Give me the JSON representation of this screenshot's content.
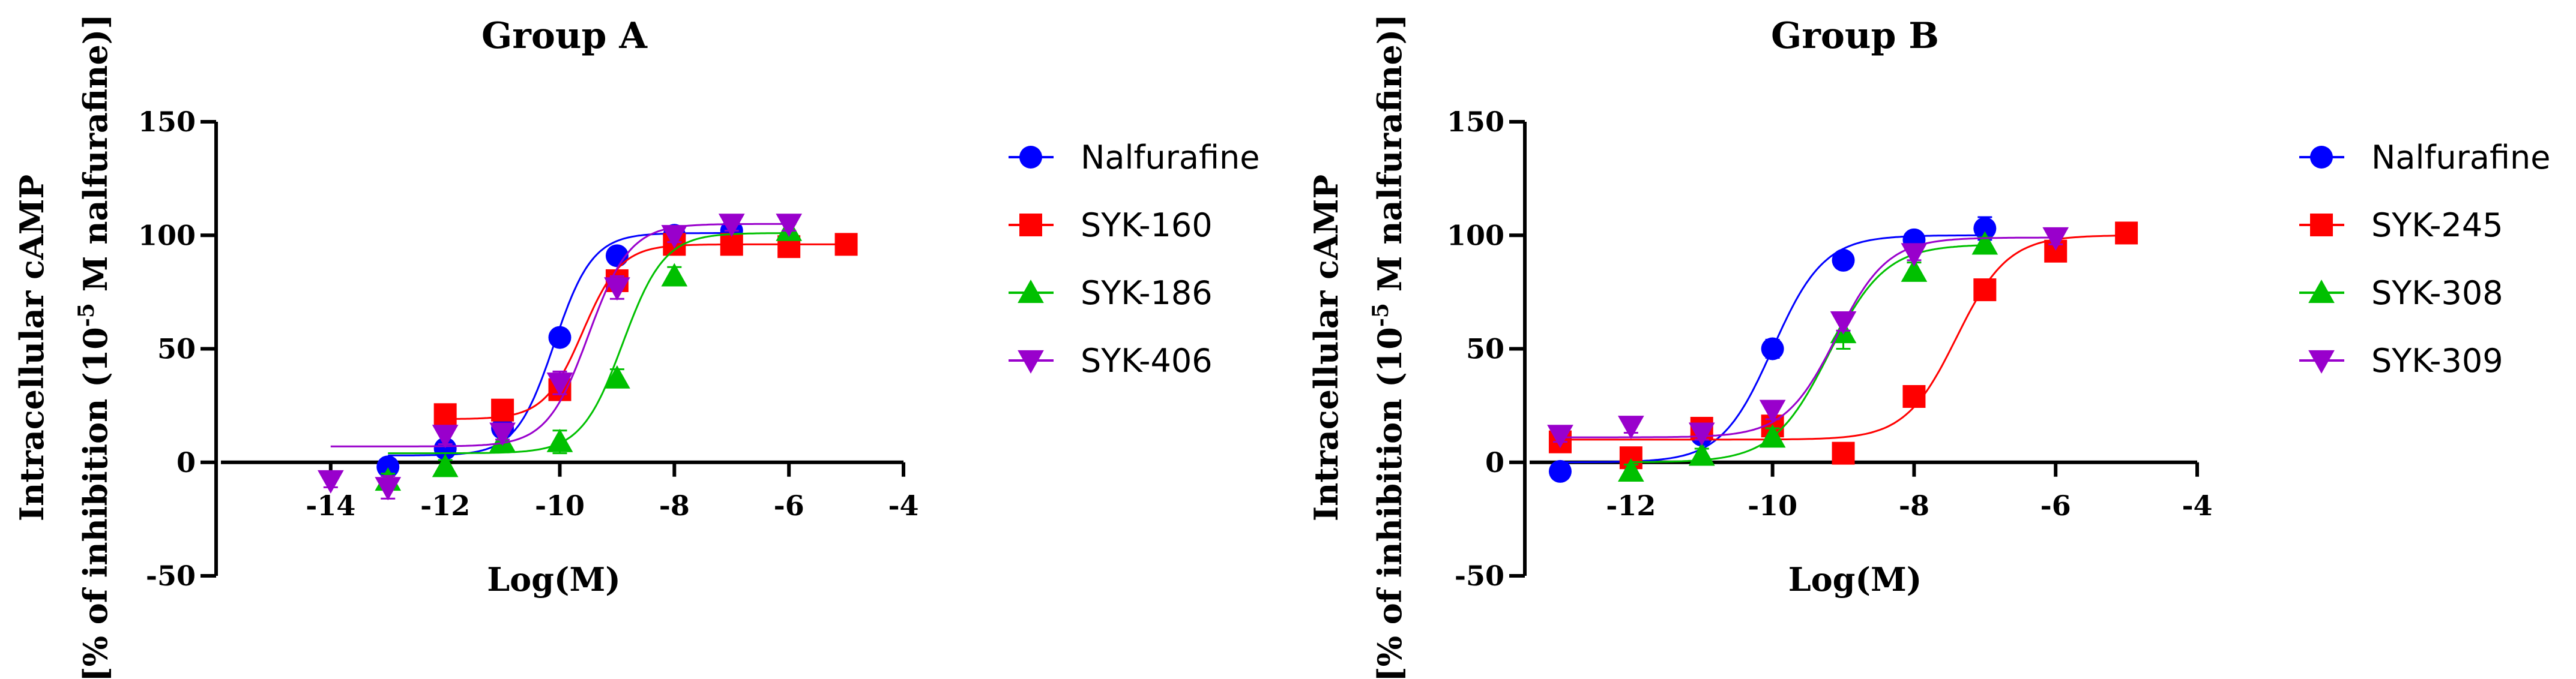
{
  "chart_data": [
    {
      "type": "scatter",
      "title": "Group A",
      "xlabel": "Log(M)",
      "ylabel_line1": "Intracellular cAMP",
      "ylabel_line2_pre": "[% of inhibition (10",
      "ylabel_line2_sup": "-5",
      "ylabel_line2_post": " M nalfurafine)]",
      "xlim": [
        -16,
        -4
      ],
      "ylim": [
        -50,
        150
      ],
      "xticks": [
        -14,
        -12,
        -10,
        -8,
        -6,
        -4
      ],
      "xtick_labels": [
        "-14",
        "-12",
        "-10",
        "-8",
        "-6",
        "-4"
      ],
      "yticks": [
        -50,
        0,
        50,
        100,
        150
      ],
      "ytick_labels": [
        "-50",
        "0",
        "50",
        "100",
        "150"
      ],
      "legend_position": "right",
      "series": [
        {
          "name": "Nalfurafine",
          "color": "#0000ff",
          "marker": "circle",
          "x": [
            -13,
            -12,
            -11,
            -10,
            -9,
            -8,
            -7
          ],
          "y": [
            -2,
            6,
            15,
            55,
            91,
            100,
            102
          ],
          "err": [
            2,
            2,
            3,
            3,
            3,
            3,
            3
          ],
          "fit": {
            "bottom": 3,
            "top": 101,
            "logec50": -10.1,
            "hill": 1.3
          }
        },
        {
          "name": "SYK-160",
          "color": "#ff0000",
          "marker": "square",
          "x": [
            -12,
            -11,
            -10,
            -9,
            -8,
            -7,
            -6,
            -5
          ],
          "y": [
            21,
            23,
            32,
            80,
            96,
            96,
            95,
            96
          ],
          "err": [
            3,
            3,
            4,
            4,
            3,
            3,
            3,
            3
          ],
          "fit": {
            "bottom": 19,
            "top": 96,
            "logec50": -9.6,
            "hill": 1.3
          }
        },
        {
          "name": "SYK-186",
          "color": "#00c000",
          "marker": "triangle-up",
          "x": [
            -13,
            -12,
            -11,
            -10,
            -9,
            -8,
            -6
          ],
          "y": [
            -8,
            -2,
            9,
            9,
            37,
            82,
            102
          ],
          "err": [
            3,
            3,
            4,
            5,
            4,
            4,
            3
          ],
          "fit": {
            "bottom": 4,
            "top": 101,
            "logec50": -8.9,
            "hill": 1.2
          }
        },
        {
          "name": "SYK-406",
          "color": "#9900cc",
          "marker": "triangle-down",
          "x": [
            -14,
            -13,
            -12,
            -11,
            -10,
            -9,
            -8,
            -7,
            -6
          ],
          "y": [
            -8,
            -11,
            12,
            13,
            35,
            77,
            100,
            105,
            105
          ],
          "err": [
            3,
            5,
            4,
            3,
            5,
            5,
            3,
            3,
            3
          ],
          "fit": {
            "bottom": 7,
            "top": 105,
            "logec50": -9.5,
            "hill": 1.2
          }
        }
      ]
    },
    {
      "type": "scatter",
      "title": "Group B",
      "xlabel": "Log(M)",
      "ylabel_line1": "Intracellular cAMP",
      "ylabel_line2_pre": "[% of inhibition (10",
      "ylabel_line2_sup": "-5",
      "ylabel_line2_post": " M nalfurafine)]",
      "xlim": [
        -13.5,
        -4
      ],
      "ylim": [
        -50,
        150
      ],
      "xticks": [
        -12,
        -10,
        -8,
        -6,
        -4
      ],
      "xtick_labels": [
        "-12",
        "-10",
        "-8",
        "-6",
        "-4"
      ],
      "yticks": [
        -50,
        0,
        50,
        100,
        150
      ],
      "ytick_labels": [
        "-50",
        "0",
        "50",
        "100",
        "150"
      ],
      "legend_position": "right",
      "series": [
        {
          "name": "Nalfurafine",
          "color": "#0000ff",
          "marker": "circle",
          "x": [
            -13,
            -12,
            -11,
            -10,
            -9,
            -8,
            -7
          ],
          "y": [
            -4,
            1,
            12,
            50,
            89,
            98,
            103
          ],
          "err": [
            2,
            2,
            3,
            4,
            3,
            3,
            5
          ],
          "fit": {
            "bottom": 0,
            "top": 100,
            "logec50": -10.0,
            "hill": 1.2
          }
        },
        {
          "name": "SYK-245",
          "color": "#ff0000",
          "marker": "square",
          "x": [
            -13,
            -12,
            -11,
            -10,
            -9,
            -8,
            -7,
            -6,
            -5
          ],
          "y": [
            9,
            2,
            15,
            16,
            4,
            29,
            76,
            93,
            101
          ],
          "err": [
            3,
            3,
            3,
            3,
            3,
            4,
            3,
            3,
            3
          ],
          "fit": {
            "bottom": 10,
            "top": 100,
            "logec50": -7.4,
            "hill": 1.2
          }
        },
        {
          "name": "SYK-308",
          "color": "#00c000",
          "marker": "triangle-up",
          "x": [
            -12,
            -11,
            -10,
            -9,
            -8,
            -7
          ],
          "y": [
            -4,
            3,
            11,
            57,
            84,
            96
          ],
          "err": [
            3,
            3,
            4,
            7,
            4,
            3
          ],
          "fit": {
            "bottom": 0,
            "top": 96,
            "logec50": -9.2,
            "hill": 1.1
          }
        },
        {
          "name": "SYK-309",
          "color": "#9900cc",
          "marker": "triangle-down",
          "x": [
            -13,
            -12,
            -11,
            -10,
            -9,
            -8,
            -6
          ],
          "y": [
            12,
            16,
            13,
            23,
            62,
            92,
            99
          ],
          "err": [
            3,
            3,
            3,
            4,
            4,
            3,
            3
          ],
          "fit": {
            "bottom": 11,
            "top": 99,
            "logec50": -9.1,
            "hill": 1.2
          }
        }
      ]
    }
  ]
}
